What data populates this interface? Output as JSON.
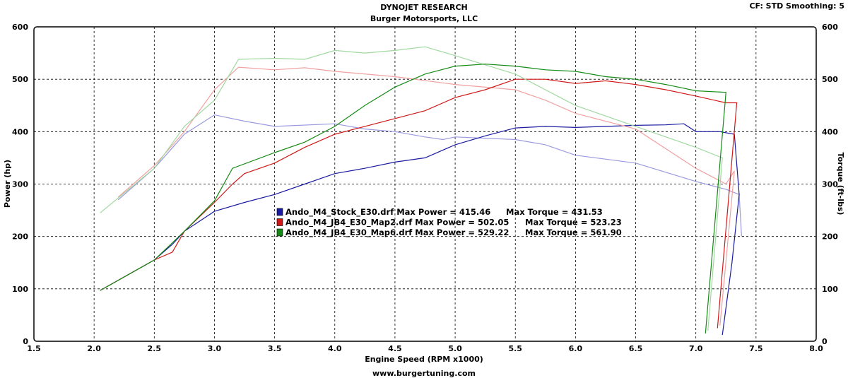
{
  "chart_data": {
    "type": "line",
    "title": "DYNOJET RESEARCH",
    "subtitle": "Burger Motorsports, LLC",
    "header_right": "CF: STD  Smoothing: 5",
    "footer": "www.burgertuning.com",
    "xlabel": "Engine Speed (RPM x1000)",
    "ylabel": "Power (hp)",
    "y2label": "Torque (ft-lbs)",
    "xlim": [
      1.5,
      8.0
    ],
    "ylim": [
      0,
      600
    ],
    "y2lim": [
      0,
      600
    ],
    "xticks": [
      "1.5",
      "2.0",
      "2.5",
      "3.0",
      "3.5",
      "4.0",
      "4.5",
      "5.0",
      "5.5",
      "6.0",
      "6.5",
      "7.0",
      "7.5",
      "8.0"
    ],
    "yticks": [
      "0",
      "100",
      "200",
      "300",
      "400",
      "500",
      "600"
    ],
    "y2ticks": [
      "0",
      "100",
      "200",
      "300",
      "400",
      "500",
      "600"
    ],
    "grid": true,
    "series": [
      {
        "name": "Ando_M4_Stock_E30.drf",
        "max_power_label": "Max Power = 415.46",
        "max_torque_label": "Max Torque = 431.53",
        "color": "#1a1aa0",
        "torque_color": "#9a9ae0",
        "power": [
          [
            2.05,
            97
          ],
          [
            2.5,
            155
          ],
          [
            2.65,
            185
          ],
          [
            2.75,
            210
          ],
          [
            3.0,
            248
          ],
          [
            3.25,
            265
          ],
          [
            3.5,
            280
          ],
          [
            3.75,
            300
          ],
          [
            4.0,
            320
          ],
          [
            4.25,
            330
          ],
          [
            4.5,
            342
          ],
          [
            4.75,
            350
          ],
          [
            5.0,
            375
          ],
          [
            5.25,
            392
          ],
          [
            5.5,
            407
          ],
          [
            5.75,
            410
          ],
          [
            6.0,
            408
          ],
          [
            6.25,
            410
          ],
          [
            6.5,
            412
          ],
          [
            6.75,
            413
          ],
          [
            6.9,
            415
          ],
          [
            7.0,
            400
          ],
          [
            7.2,
            400
          ],
          [
            7.32,
            395
          ],
          [
            7.36,
            280
          ],
          [
            7.3,
            150
          ],
          [
            7.22,
            12
          ]
        ],
        "torque": [
          [
            2.2,
            270
          ],
          [
            2.5,
            330
          ],
          [
            2.75,
            395
          ],
          [
            3.0,
            432
          ],
          [
            3.25,
            420
          ],
          [
            3.5,
            410
          ],
          [
            4.0,
            415
          ],
          [
            4.25,
            405
          ],
          [
            4.5,
            400
          ],
          [
            4.75,
            390
          ],
          [
            4.9,
            385
          ],
          [
            5.0,
            390
          ],
          [
            5.5,
            385
          ],
          [
            5.75,
            375
          ],
          [
            6.0,
            355
          ],
          [
            6.5,
            340
          ],
          [
            7.0,
            305
          ],
          [
            7.25,
            290
          ],
          [
            7.36,
            280
          ],
          [
            7.38,
            200
          ]
        ]
      },
      {
        "name": "Ando_M4_JB4_E30_Map2.drf",
        "max_power_label": "Max Power = 502.05",
        "max_torque_label": "Max Torque = 523.23",
        "color": "#d01818",
        "torque_color": "#f0a0a0",
        "power": [
          [
            2.05,
            97
          ],
          [
            2.5,
            155
          ],
          [
            2.65,
            170
          ],
          [
            2.75,
            210
          ],
          [
            3.0,
            265
          ],
          [
            3.15,
            300
          ],
          [
            3.25,
            320
          ],
          [
            3.5,
            340
          ],
          [
            3.75,
            370
          ],
          [
            4.0,
            395
          ],
          [
            4.25,
            410
          ],
          [
            4.5,
            425
          ],
          [
            4.75,
            440
          ],
          [
            5.0,
            465
          ],
          [
            5.25,
            480
          ],
          [
            5.5,
            500
          ],
          [
            5.75,
            500
          ],
          [
            6.0,
            492
          ],
          [
            6.25,
            497
          ],
          [
            6.5,
            490
          ],
          [
            6.75,
            480
          ],
          [
            7.0,
            468
          ],
          [
            7.25,
            455
          ],
          [
            7.34,
            455
          ],
          [
            7.18,
            25
          ]
        ],
        "torque": [
          [
            2.2,
            275
          ],
          [
            2.5,
            335
          ],
          [
            2.75,
            400
          ],
          [
            3.0,
            480
          ],
          [
            3.2,
            523
          ],
          [
            3.5,
            518
          ],
          [
            3.75,
            522
          ],
          [
            4.0,
            515
          ],
          [
            4.5,
            505
          ],
          [
            5.0,
            490
          ],
          [
            5.5,
            480
          ],
          [
            5.75,
            460
          ],
          [
            6.0,
            435
          ],
          [
            6.5,
            405
          ],
          [
            7.0,
            330
          ],
          [
            7.25,
            300
          ],
          [
            7.32,
            325
          ],
          [
            7.2,
            30
          ]
        ]
      },
      {
        "name": "Ando_M4_JB4_E30_Map6.drf",
        "max_power_label": "Max Power = 529.22",
        "max_torque_label": "Max Torque = 561.90",
        "color": "#168a16",
        "torque_color": "#a0d8a0",
        "power": [
          [
            2.05,
            97
          ],
          [
            2.5,
            155
          ],
          [
            2.75,
            210
          ],
          [
            3.0,
            268
          ],
          [
            3.15,
            330
          ],
          [
            3.5,
            360
          ],
          [
            3.75,
            380
          ],
          [
            4.0,
            410
          ],
          [
            4.25,
            450
          ],
          [
            4.5,
            485
          ],
          [
            4.75,
            510
          ],
          [
            5.0,
            525
          ],
          [
            5.25,
            529
          ],
          [
            5.5,
            525
          ],
          [
            5.75,
            518
          ],
          [
            6.0,
            515
          ],
          [
            6.25,
            505
          ],
          [
            6.5,
            500
          ],
          [
            6.75,
            490
          ],
          [
            7.0,
            478
          ],
          [
            7.25,
            475
          ],
          [
            7.08,
            15
          ]
        ],
        "torque": [
          [
            2.05,
            245
          ],
          [
            2.5,
            330
          ],
          [
            2.75,
            410
          ],
          [
            3.0,
            460
          ],
          [
            3.2,
            538
          ],
          [
            3.5,
            540
          ],
          [
            3.75,
            538
          ],
          [
            4.0,
            555
          ],
          [
            4.25,
            550
          ],
          [
            4.5,
            555
          ],
          [
            4.75,
            562
          ],
          [
            5.0,
            545
          ],
          [
            5.5,
            510
          ],
          [
            6.0,
            450
          ],
          [
            6.5,
            410
          ],
          [
            7.0,
            370
          ],
          [
            7.22,
            350
          ],
          [
            7.1,
            20
          ]
        ]
      }
    ]
  }
}
